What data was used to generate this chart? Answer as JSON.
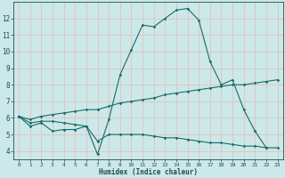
{
  "xlabel": "Humidex (Indice chaleur)",
  "ylabel": "",
  "background_color": "#cce8e8",
  "grid_color": "#e8b8b8",
  "line_color": "#1a6b6b",
  "x_values": [
    0,
    1,
    2,
    3,
    4,
    5,
    6,
    7,
    8,
    9,
    10,
    11,
    12,
    13,
    14,
    15,
    16,
    17,
    18,
    19,
    20,
    21,
    22,
    23
  ],
  "line1": [
    6.1,
    5.5,
    5.7,
    5.2,
    5.3,
    5.3,
    5.5,
    3.8,
    5.9,
    8.6,
    10.1,
    11.6,
    11.5,
    12.0,
    12.5,
    12.6,
    11.9,
    9.4,
    8.0,
    8.3,
    6.5,
    5.2,
    4.2,
    null
  ],
  "line2": [
    6.1,
    5.9,
    6.1,
    6.2,
    6.3,
    6.4,
    6.5,
    6.5,
    6.7,
    6.9,
    7.0,
    7.1,
    7.2,
    7.4,
    7.5,
    7.6,
    7.7,
    7.8,
    7.9,
    8.0,
    8.0,
    8.1,
    8.2,
    8.3
  ],
  "line3": [
    6.1,
    5.7,
    5.8,
    5.8,
    5.7,
    5.6,
    5.5,
    4.6,
    5.0,
    5.0,
    5.0,
    5.0,
    4.9,
    4.8,
    4.8,
    4.7,
    4.6,
    4.5,
    4.5,
    4.4,
    4.3,
    4.3,
    4.2,
    4.2
  ],
  "ylim": [
    3.5,
    13.0
  ],
  "yticks": [
    4,
    5,
    6,
    7,
    8,
    9,
    10,
    11,
    12
  ],
  "xlim": [
    -0.5,
    23.5
  ],
  "xticks": [
    0,
    1,
    2,
    3,
    4,
    5,
    6,
    7,
    8,
    9,
    10,
    11,
    12,
    13,
    14,
    15,
    16,
    17,
    18,
    19,
    20,
    21,
    22,
    23
  ]
}
